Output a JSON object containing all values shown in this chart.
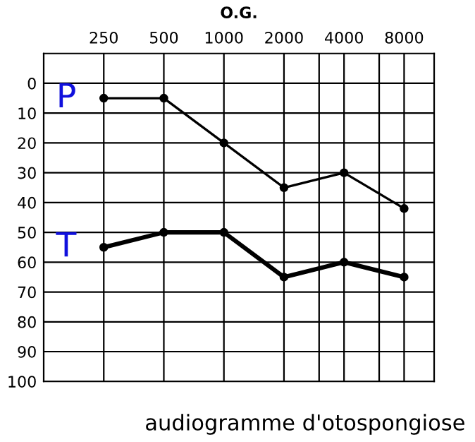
{
  "chart_data": {
    "type": "line",
    "title": "O.G.",
    "annotations": [
      "audiogramme d'otospongiose"
    ],
    "x": [
      250,
      500,
      1000,
      2000,
      4000,
      8000
    ],
    "series": [
      {
        "name": "P",
        "color": "#000000",
        "values": [
          5,
          5,
          20,
          35,
          30,
          42
        ]
      },
      {
        "name": "T",
        "color": "#000000",
        "values": [
          55,
          50,
          50,
          65,
          60,
          65
        ]
      }
    ],
    "log": "x",
    "xlim": [
      125,
      11314
    ],
    "xticks": [
      250,
      500,
      1000,
      2000,
      {
        "value": 3000,
        "label": null
      },
      4000,
      {
        "value": 6000,
        "label": null
      },
      8000
    ],
    "ylim": [
      100,
      -10
    ],
    "yticks": [
      0,
      10,
      20,
      30,
      40,
      50,
      60,
      70,
      80,
      90,
      100
    ],
    "grid": true,
    "legend": false,
    "marker": "circle",
    "line_style": "solid"
  }
}
